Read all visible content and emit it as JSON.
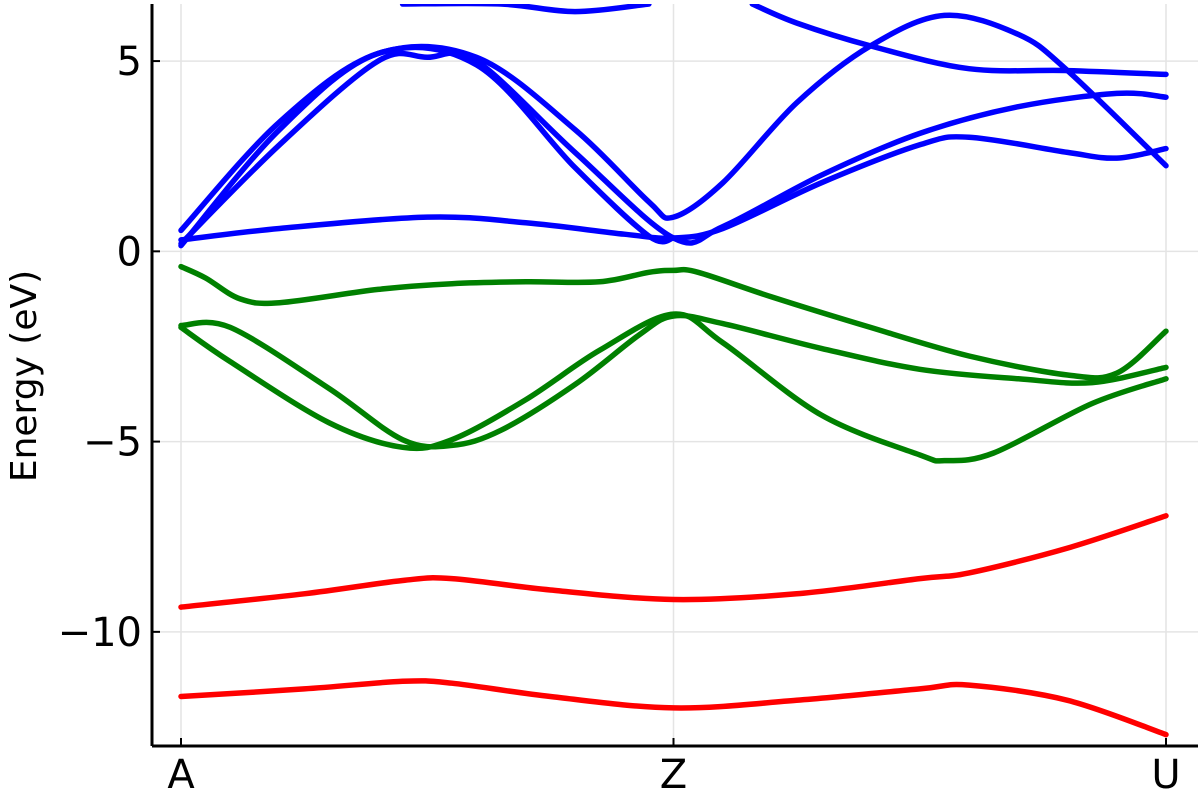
{
  "chart_data": {
    "type": "line",
    "title": "",
    "xlabel": "",
    "ylabel": "Energy (eV)",
    "xlim": [
      0,
      2
    ],
    "ylim": [
      -13,
      6.5
    ],
    "grid": true,
    "legend": "none",
    "x_ticks": [
      {
        "value": 0,
        "label": "A"
      },
      {
        "value": 1,
        "label": "Z"
      },
      {
        "value": 2,
        "label": "U"
      }
    ],
    "y_ticks": [
      {
        "value": 5,
        "label": "5"
      },
      {
        "value": 0,
        "label": "0"
      },
      {
        "value": -5,
        "label": "−5"
      },
      {
        "value": -10,
        "label": "−10"
      }
    ],
    "colors": {
      "conduction": "#0000ff",
      "valence": "#008000",
      "core": "#ff0000"
    },
    "series": [
      {
        "group": "core",
        "color": "#ff0000",
        "points": [
          [
            0,
            -11.7
          ],
          [
            0.25,
            -11.5
          ],
          [
            0.45,
            -11.3
          ],
          [
            0.55,
            -11.35
          ],
          [
            0.75,
            -11.7
          ],
          [
            1.0,
            -12.0
          ],
          [
            1.25,
            -11.8
          ],
          [
            1.5,
            -11.5
          ],
          [
            1.6,
            -11.4
          ],
          [
            1.8,
            -11.8
          ],
          [
            2.0,
            -12.7
          ]
        ]
      },
      {
        "group": "core",
        "color": "#ff0000",
        "points": [
          [
            0,
            -9.35
          ],
          [
            0.25,
            -9.0
          ],
          [
            0.45,
            -8.65
          ],
          [
            0.55,
            -8.6
          ],
          [
            0.75,
            -8.9
          ],
          [
            1.0,
            -9.15
          ],
          [
            1.25,
            -9.0
          ],
          [
            1.5,
            -8.6
          ],
          [
            1.6,
            -8.45
          ],
          [
            1.8,
            -7.8
          ],
          [
            2.0,
            -6.95
          ]
        ]
      },
      {
        "group": "valence",
        "color": "#008000",
        "points": [
          [
            0,
            -0.4
          ],
          [
            0.05,
            -0.7
          ],
          [
            0.12,
            -1.25
          ],
          [
            0.2,
            -1.35
          ],
          [
            0.4,
            -1.0
          ],
          [
            0.55,
            -0.85
          ],
          [
            0.7,
            -0.8
          ],
          [
            0.85,
            -0.8
          ],
          [
            0.95,
            -0.55
          ],
          [
            1.0,
            -0.5
          ],
          [
            1.05,
            -0.55
          ],
          [
            1.2,
            -1.2
          ],
          [
            1.4,
            -2.0
          ],
          [
            1.6,
            -2.75
          ],
          [
            1.8,
            -3.25
          ],
          [
            1.9,
            -3.2
          ],
          [
            2.0,
            -2.1
          ]
        ]
      },
      {
        "group": "valence",
        "color": "#008000",
        "points": [
          [
            0,
            -1.95
          ],
          [
            0.1,
            -2.0
          ],
          [
            0.3,
            -3.6
          ],
          [
            0.45,
            -4.95
          ],
          [
            0.55,
            -5.1
          ],
          [
            0.65,
            -4.7
          ],
          [
            0.8,
            -3.5
          ],
          [
            0.93,
            -2.2
          ],
          [
            1.0,
            -1.7
          ],
          [
            1.1,
            -1.9
          ],
          [
            1.3,
            -2.55
          ],
          [
            1.5,
            -3.1
          ],
          [
            1.7,
            -3.35
          ],
          [
            1.85,
            -3.45
          ],
          [
            2.0,
            -3.05
          ]
        ]
      },
      {
        "group": "valence",
        "color": "#008000",
        "points": [
          [
            0,
            -2.0
          ],
          [
            0.1,
            -2.9
          ],
          [
            0.3,
            -4.5
          ],
          [
            0.45,
            -5.15
          ],
          [
            0.55,
            -4.95
          ],
          [
            0.7,
            -3.9
          ],
          [
            0.85,
            -2.6
          ],
          [
            1.0,
            -1.65
          ],
          [
            1.1,
            -2.4
          ],
          [
            1.3,
            -4.3
          ],
          [
            1.5,
            -5.35
          ],
          [
            1.55,
            -5.5
          ],
          [
            1.65,
            -5.3
          ],
          [
            1.85,
            -4.0
          ],
          [
            2.0,
            -3.35
          ]
        ]
      },
      {
        "group": "conduction",
        "color": "#0000ff",
        "points": [
          [
            0,
            0.3
          ],
          [
            0.2,
            0.6
          ],
          [
            0.5,
            0.9
          ],
          [
            0.7,
            0.75
          ],
          [
            0.9,
            0.45
          ],
          [
            1.0,
            0.35
          ],
          [
            1.1,
            0.6
          ],
          [
            1.3,
            1.8
          ],
          [
            1.5,
            2.8
          ],
          [
            1.6,
            3.0
          ],
          [
            1.8,
            2.6
          ],
          [
            1.9,
            2.45
          ],
          [
            2.0,
            2.7
          ]
        ]
      },
      {
        "group": "conduction",
        "color": "#0000ff",
        "points": [
          [
            0,
            0.2
          ],
          [
            0.2,
            2.8
          ],
          [
            0.4,
            5.0
          ],
          [
            0.5,
            5.1
          ],
          [
            0.6,
            5.0
          ],
          [
            0.8,
            2.6
          ],
          [
            1.0,
            0.35
          ],
          [
            1.1,
            0.65
          ],
          [
            1.3,
            2.0
          ],
          [
            1.5,
            3.1
          ],
          [
            1.7,
            3.8
          ],
          [
            1.9,
            4.15
          ],
          [
            2.0,
            4.05
          ]
        ]
      },
      {
        "group": "conduction",
        "color": "#0000ff",
        "points": [
          [
            0,
            0.15
          ],
          [
            0.2,
            3.2
          ],
          [
            0.4,
            5.2
          ],
          [
            0.6,
            4.9
          ],
          [
            0.8,
            2.2
          ],
          [
            0.95,
            0.4
          ],
          [
            1.0,
            0.35
          ]
        ]
      },
      {
        "group": "conduction",
        "color": "#0000ff",
        "points": [
          [
            0,
            0.55
          ],
          [
            0.2,
            3.4
          ],
          [
            0.4,
            5.2
          ],
          [
            0.6,
            5.1
          ],
          [
            0.8,
            3.2
          ],
          [
            0.95,
            1.3
          ],
          [
            1.0,
            0.9
          ],
          [
            1.1,
            1.8
          ],
          [
            1.25,
            3.9
          ],
          [
            1.4,
            5.4
          ],
          [
            1.55,
            6.2
          ],
          [
            1.7,
            5.7
          ],
          [
            1.8,
            4.75
          ],
          [
            2.0,
            2.25
          ]
        ]
      },
      {
        "group": "conduction",
        "color": "#0000ff",
        "points": [
          [
            0.45,
            6.5
          ],
          [
            0.65,
            6.5
          ],
          [
            0.8,
            6.3
          ],
          [
            0.95,
            6.5
          ]
        ]
      },
      {
        "group": "conduction",
        "color": "#0000ff",
        "points": [
          [
            1.16,
            6.5
          ],
          [
            1.25,
            6.0
          ],
          [
            1.4,
            5.4
          ],
          [
            1.6,
            4.8
          ],
          [
            1.8,
            4.75
          ],
          [
            2.0,
            4.65
          ]
        ]
      }
    ]
  }
}
